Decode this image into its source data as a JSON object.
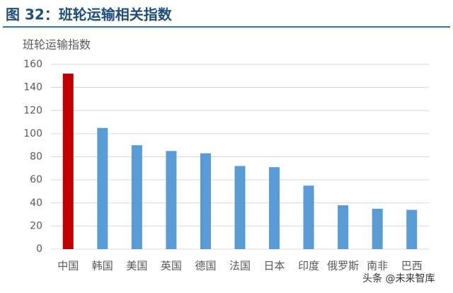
{
  "chart_data": {
    "type": "bar",
    "title": "图 32：班轮运输相关指数",
    "y_label": "班轮运输指数",
    "categories": [
      "中国",
      "韩国",
      "美国",
      "英国",
      "德国",
      "法国",
      "日本",
      "印度",
      "俄罗斯",
      "南非",
      "巴西"
    ],
    "values": [
      152,
      105,
      90,
      85,
      83,
      72,
      71,
      55,
      38,
      35,
      34
    ],
    "colors": [
      "#c00000",
      "#5b9bd5",
      "#5b9bd5",
      "#5b9bd5",
      "#5b9bd5",
      "#5b9bd5",
      "#5b9bd5",
      "#5b9bd5",
      "#5b9bd5",
      "#5b9bd5",
      "#5b9bd5"
    ],
    "ylim": [
      0,
      160
    ],
    "yticks": [
      0,
      20,
      40,
      60,
      80,
      100,
      120,
      140,
      160
    ],
    "grid": true,
    "watermark": "头条 @未来智库"
  }
}
